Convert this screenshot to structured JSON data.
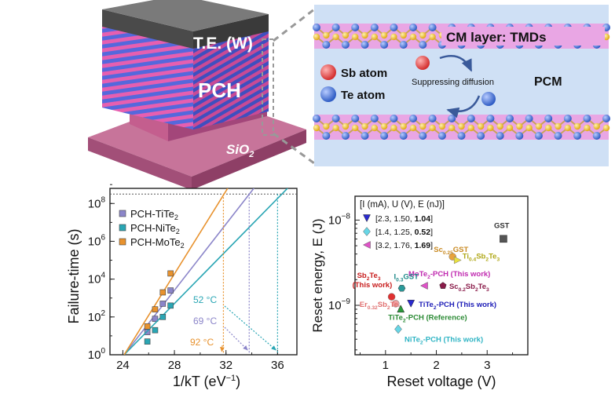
{
  "colors": {
    "accent": "#2f6fb0",
    "orange": "#e8922e",
    "purple": "#8b85c9",
    "teal": "#2aa6b4",
    "pink": "#e0519a",
    "blue_layer": "#4e63d8",
    "gray_top": "#6e6e6e",
    "sio2": "#b45a82",
    "cm_band": "#e9a6e4",
    "panel_bg": "#cfe0f5",
    "sb_atom": "#e04848",
    "te_atom": "#3b6ed4",
    "se_yellow": "#f2c12e"
  },
  "schematic": {
    "top_electrode": "T.E. (W)",
    "pch": "PCH",
    "substrate": "SiO2",
    "cm_layer": "CM layer: TMDs",
    "sb_label": "Sb atom",
    "te_label": "Te atom",
    "diffusion": "Suppressing diffusion",
    "pcm": "PCM"
  },
  "chart_data": [
    {
      "type": "line",
      "title": "",
      "xlabel": "1/kT (eV⁻¹)",
      "ylabel": "Failure-time (s)",
      "xlim": [
        23,
        37.5
      ],
      "ylim_log10": [
        0,
        8.8
      ],
      "xticks": [
        "24",
        "28",
        "32",
        "36"
      ],
      "yticks": [
        "10^0",
        "10^2",
        "10^4",
        "10^6",
        "10^8"
      ],
      "ten_year_line_log10": 8.5,
      "series": [
        {
          "name": "PCH-TiTe2",
          "marker": "square",
          "color": "#8b85c9",
          "points": [
            [
              25.9,
              1.2
            ],
            [
              26.5,
              1.9
            ],
            [
              27.1,
              2.7
            ],
            [
              27.7,
              3.4
            ]
          ],
          "fit": [
            [
              24.1,
              0
            ],
            [
              34.5,
              9.1
            ]
          ],
          "extrap_x": 33.8,
          "temp_label": "69 °C"
        },
        {
          "name": "PCH-NiTe2",
          "marker": "square",
          "color": "#2aa6b4",
          "points": [
            [
              25.9,
              0.7
            ],
            [
              26.5,
              1.3
            ],
            [
              27.1,
              2.0
            ],
            [
              27.7,
              2.6
            ]
          ],
          "fit": [
            [
              24.1,
              0
            ],
            [
              37.2,
              9.1
            ]
          ],
          "extrap_x": 36.0,
          "temp_label": "52 °C"
        },
        {
          "name": "PCH-MoTe2",
          "marker": "square",
          "color": "#e8922e",
          "points": [
            [
              25.9,
              1.5
            ],
            [
              26.5,
              2.4
            ],
            [
              27.1,
              3.3
            ],
            [
              27.7,
              4.3
            ]
          ],
          "fit": [
            [
              24.1,
              0
            ],
            [
              32.4,
              9.1
            ]
          ],
          "extrap_x": 31.8,
          "temp_label": "92 °C"
        }
      ]
    },
    {
      "type": "scatter",
      "title": "",
      "xlabel": "Reset voltage (V)",
      "ylabel": "Reset energy, E (J)",
      "xlim": [
        0.4,
        3.8
      ],
      "ylim_log10": [
        -9.58,
        -7.72
      ],
      "xticks": [
        "1",
        "2",
        "3"
      ],
      "yticks": [
        "10^-9",
        "10^-8"
      ],
      "legend_header": "[I (mA), U (V), E (nJ)]",
      "legend": [
        {
          "marker": "triangle-down",
          "color": "#2a2ad0",
          "text": "[2.3, 1.50, ",
          "bold": "1.04",
          "end": "]"
        },
        {
          "marker": "diamond",
          "color": "#67d6e6",
          "text": "[1.4, 1.25, ",
          "bold": "0.52",
          "end": "]"
        },
        {
          "marker": "triangle-left",
          "color": "#e052c8",
          "text": "[3.2, 1.76, ",
          "bold": "1.69",
          "end": "]"
        }
      ],
      "points": [
        {
          "label": "GST",
          "x": 3.32,
          "log10_y": -8.22,
          "marker": "square",
          "color": "#555555",
          "label_color": "#333333"
        },
        {
          "label": "Sc0.25GST",
          "x": 2.32,
          "log10_y": -8.43,
          "marker": "circle",
          "color": "#e8a33c",
          "label_color": "#c98a22"
        },
        {
          "label": "Ti0.4Sb2Te3",
          "x": 2.42,
          "log10_y": -8.47,
          "marker": "triangle-right",
          "color": "#e8e040",
          "label_color": "#b0a818"
        },
        {
          "label": "MoTe2-PCH (This work)",
          "x": 1.76,
          "log10_y": -8.77,
          "marker": "triangle-left",
          "color": "#e052c8",
          "label_color": "#c02ab0"
        },
        {
          "label": "Sc0.2Sb2Te3",
          "x": 2.13,
          "log10_y": -8.77,
          "marker": "pentagon",
          "color": "#8a1c4a",
          "label_color": "#8a1c4a"
        },
        {
          "label": "I0.3GST",
          "x": 1.32,
          "log10_y": -8.8,
          "marker": "hexagon",
          "color": "#2a9a9a",
          "label_color": "#1f8a8a"
        },
        {
          "label": "Sb2Te3 (This work)",
          "x": 1.12,
          "log10_y": -8.9,
          "marker": "circle",
          "color": "#e03030",
          "label_color": "#c81e1e"
        },
        {
          "label": "Er0.32Sb2Te3",
          "x": 1.2,
          "log10_y": -8.98,
          "marker": "circle",
          "color": "#f0a0a0",
          "label_color": "#e07070"
        },
        {
          "label": "TiTe2-PCH (This work)",
          "x": 1.5,
          "log10_y": -8.98,
          "marker": "triangle-down",
          "color": "#2a2ad0",
          "label_color": "#2020b8"
        },
        {
          "label": "TiTe2-PCH (Reference)",
          "x": 1.3,
          "log10_y": -9.04,
          "marker": "triangle-up",
          "color": "#2a9a3a",
          "label_color": "#2a8a34"
        },
        {
          "label": "NiTe2-PCH (This work)",
          "x": 1.25,
          "log10_y": -9.28,
          "marker": "diamond",
          "color": "#67d6e6",
          "label_color": "#2fb4c4"
        }
      ]
    }
  ]
}
